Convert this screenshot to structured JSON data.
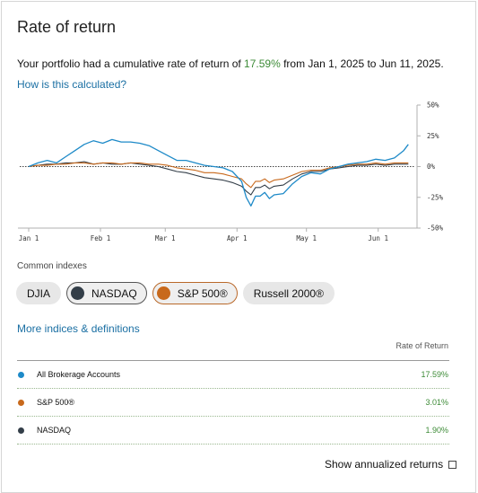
{
  "title": "Rate of return",
  "summary": {
    "prefix": "Your portfolio had a cumulative rate of return of ",
    "value": "17.59%",
    "suffix": " from Jan 1, 2025 to Jun 11, 2025."
  },
  "links": {
    "how": "How is this calculated?",
    "more": "More indices & definitions"
  },
  "common_indexes_label": "Common indexes",
  "pills": [
    {
      "label": "DJIA",
      "selected": false,
      "color": ""
    },
    {
      "label": "NASDAQ",
      "selected": true,
      "color": "#333e48"
    },
    {
      "label": "S&P 500®",
      "selected": true,
      "color": "#c8691c"
    },
    {
      "label": "Russell 2000®",
      "selected": false,
      "color": ""
    }
  ],
  "table": {
    "header": "Rate of Return",
    "rows": [
      {
        "name": "All Brokerage Accounts",
        "value": "17.59%",
        "color": "#1e8ac8"
      },
      {
        "name": "S&P 500®",
        "value": "3.01%",
        "color": "#c8691c"
      },
      {
        "name": "NASDAQ",
        "value": "1.90%",
        "color": "#333e48"
      }
    ]
  },
  "annualized_label": "Show annualized returns",
  "chart_data": {
    "type": "line",
    "x_ticks": [
      "Jan 1",
      "Feb 1",
      "Mar 1",
      "Apr 1",
      "May 1",
      "Jun 1"
    ],
    "x_tick_days": [
      0,
      31,
      59,
      90,
      120,
      151
    ],
    "y_ticks": [
      "50%",
      "25%",
      "0%",
      "-25%",
      "-50%"
    ],
    "y_tick_values": [
      50,
      25,
      0,
      -25,
      -50
    ],
    "ylim": [
      -50,
      50
    ],
    "xlim_days": [
      0,
      167
    ],
    "series": [
      {
        "name": "All Brokerage Accounts",
        "color": "#1e8ac8",
        "x": [
          0,
          4,
          8,
          12,
          16,
          20,
          24,
          28,
          32,
          36,
          40,
          44,
          48,
          52,
          56,
          60,
          64,
          68,
          72,
          76,
          80,
          84,
          88,
          92,
          94,
          96,
          98,
          100,
          102,
          104,
          106,
          110,
          114,
          118,
          122,
          126,
          130,
          134,
          138,
          142,
          146,
          150,
          154,
          158,
          162,
          164
        ],
        "y": [
          0,
          3,
          5,
          3,
          8,
          13,
          18,
          21,
          19,
          22,
          20,
          20,
          19,
          17,
          13,
          9,
          5,
          5,
          3,
          1,
          0,
          -1,
          -4,
          -12,
          -25,
          -32,
          -24,
          -24,
          -21,
          -26,
          -23,
          -22,
          -14,
          -8,
          -5,
          -6,
          -2,
          0,
          2,
          3,
          4,
          6,
          5,
          7,
          13,
          18
        ]
      },
      {
        "name": "S&P 500®",
        "color": "#c8691c",
        "x": [
          0,
          4,
          8,
          12,
          16,
          20,
          24,
          28,
          32,
          36,
          40,
          44,
          48,
          52,
          56,
          60,
          64,
          68,
          72,
          76,
          80,
          84,
          88,
          92,
          94,
          96,
          98,
          100,
          102,
          104,
          106,
          110,
          114,
          118,
          122,
          126,
          130,
          134,
          138,
          142,
          146,
          150,
          154,
          158,
          162,
          164
        ],
        "y": [
          0,
          1,
          1,
          2,
          2,
          3,
          3,
          2,
          3,
          3,
          2,
          3,
          3,
          2,
          2,
          1,
          -1,
          -2,
          -3,
          -5,
          -5,
          -6,
          -8,
          -10,
          -14,
          -17,
          -12,
          -12,
          -10,
          -13,
          -11,
          -10,
          -7,
          -4,
          -3,
          -3,
          -1,
          0,
          1,
          2,
          2,
          3,
          2,
          3,
          3,
          3
        ]
      },
      {
        "name": "NASDAQ",
        "color": "#333e48",
        "x": [
          0,
          4,
          8,
          12,
          16,
          20,
          24,
          28,
          32,
          36,
          40,
          44,
          48,
          52,
          56,
          60,
          64,
          68,
          72,
          76,
          80,
          84,
          88,
          92,
          94,
          96,
          98,
          100,
          102,
          104,
          106,
          110,
          114,
          118,
          122,
          126,
          130,
          134,
          138,
          142,
          146,
          150,
          154,
          158,
          162,
          164
        ],
        "y": [
          0,
          1,
          2,
          2,
          3,
          3,
          4,
          2,
          3,
          2,
          2,
          3,
          2,
          1,
          0,
          -2,
          -4,
          -5,
          -7,
          -9,
          -10,
          -11,
          -13,
          -16,
          -20,
          -23,
          -17,
          -17,
          -15,
          -18,
          -16,
          -15,
          -10,
          -6,
          -4,
          -4,
          -2,
          -1,
          0,
          1,
          1,
          2,
          1,
          2,
          2,
          2
        ]
      }
    ]
  }
}
